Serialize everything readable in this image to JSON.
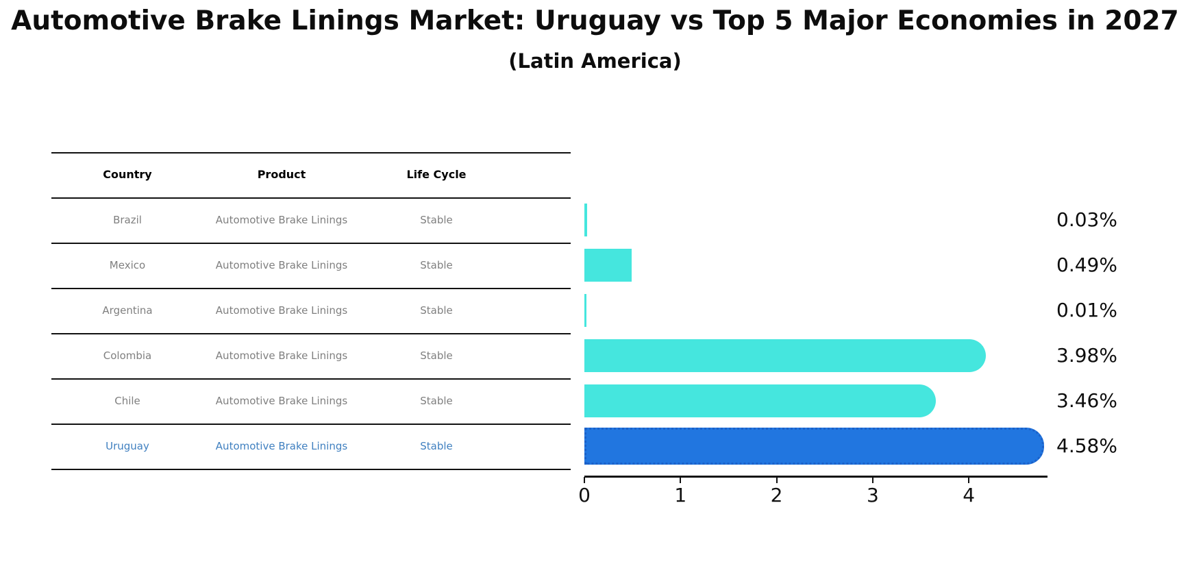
{
  "title": "Automotive Brake Linings Market: Uruguay vs Top 5 Major Economies in 2027",
  "subtitle": "(Latin America)",
  "table": {
    "columns": [
      "Country",
      "Product",
      "Life Cycle"
    ],
    "rows": [
      {
        "country": "Brazil",
        "product": "Automotive Brake Linings",
        "life_cycle": "Stable",
        "highlighted": false
      },
      {
        "country": "Mexico",
        "product": "Automotive Brake Linings",
        "life_cycle": "Stable",
        "highlighted": false
      },
      {
        "country": "Argentina",
        "product": "Automotive Brake Linings",
        "life_cycle": "Stable",
        "highlighted": false
      },
      {
        "country": "Colombia",
        "product": "Automotive Brake Linings",
        "life_cycle": "Stable",
        "highlighted": false
      },
      {
        "country": "Chile",
        "product": "Automotive Brake Linings",
        "life_cycle": "Stable",
        "highlighted": false
      },
      {
        "country": "Uruguay",
        "product": "Automotive Brake Linings",
        "life_cycle": "Stable",
        "highlighted": true
      }
    ]
  },
  "chart_data": {
    "type": "bar",
    "orientation": "horizontal",
    "title": "Automotive Brake Linings Market: Uruguay vs Top 5 Major Economies in 2027",
    "subtitle": "(Latin America)",
    "categories": [
      "Brazil",
      "Mexico",
      "Argentina",
      "Colombia",
      "Chile",
      "Uruguay"
    ],
    "values": [
      0.03,
      0.49,
      0.01,
      3.98,
      3.46,
      4.58
    ],
    "value_labels": [
      "0.03%",
      "0.49%",
      "0.01%",
      "3.98%",
      "3.46%",
      "4.58%"
    ],
    "x_ticks": [
      "0",
      "1",
      "2",
      "3",
      "4"
    ],
    "xlim": [
      0,
      4.82
    ],
    "grid": false,
    "legend": false,
    "bar_color": "#45E6DE",
    "highlight_color": "#2176E0",
    "highlight_border_color": "#1B61C9",
    "highlight_index": 5
  },
  "colors": {
    "background": "#FFFFFF",
    "table_line": "#111111",
    "cell_text": "#7F7F7F",
    "highlight_text": "#4080C0",
    "axis_text": "#111111"
  }
}
